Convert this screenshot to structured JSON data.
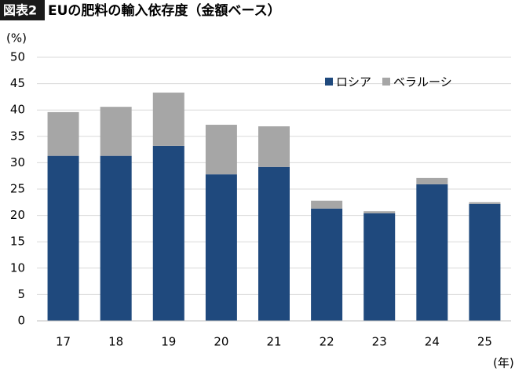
{
  "chart_data": {
    "type": "stacked_bar",
    "figure_label": "図表2",
    "title": "EUの肥料の輸入依存度（金額ベース）",
    "y_label": "(%)",
    "x_label": "(年)",
    "categories": [
      "17",
      "18",
      "19",
      "20",
      "21",
      "22",
      "23",
      "24",
      "25"
    ],
    "series": [
      {
        "name": "ロシア",
        "color": "#1f497d",
        "values": [
          31.3,
          31.3,
          33.2,
          27.8,
          29.2,
          21.3,
          20.4,
          25.9,
          22.2
        ]
      },
      {
        "name": "ベラルーシ",
        "color": "#a6a6a6",
        "values": [
          8.3,
          9.3,
          10.1,
          9.4,
          7.7,
          1.5,
          0.4,
          1.2,
          0.3
        ]
      }
    ],
    "ylim": [
      0,
      50
    ],
    "yticks": [
      0,
      5,
      10,
      15,
      20,
      25,
      30,
      35,
      40,
      45,
      50
    ],
    "grid": true,
    "legend": "top-right"
  }
}
